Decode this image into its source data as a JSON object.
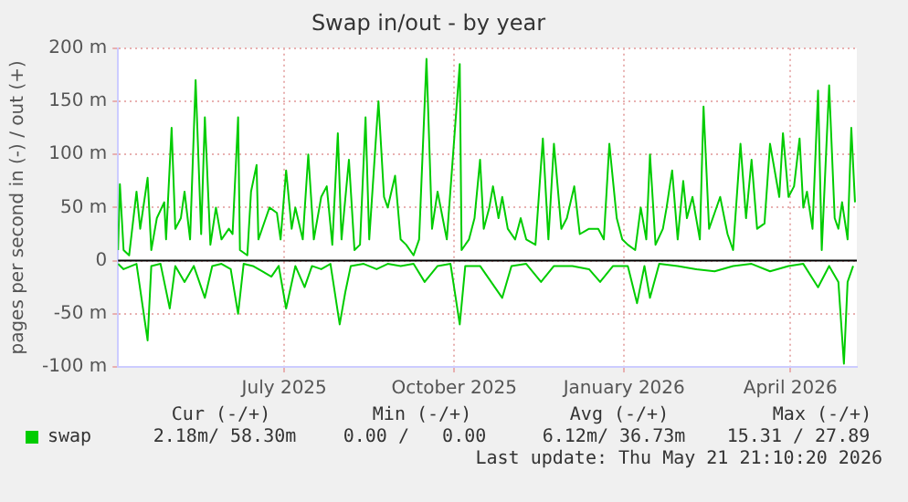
{
  "chart_data": {
    "type": "line",
    "title": "Swap in/out - by year",
    "ylabel": "pages per second in (-) / out (+)",
    "xlim": [
      "2025-04-17",
      "2026-05-22"
    ],
    "xticks": [
      {
        "value": "2025-07-16",
        "label": "July 2025"
      },
      {
        "value": "2025-10-16",
        "label": "October 2025"
      },
      {
        "value": "2026-01-16",
        "label": "January 2026"
      },
      {
        "value": "2026-04-16",
        "label": "April 2026"
      }
    ],
    "ylim": [
      -100,
      200
    ],
    "yticks": [
      {
        "value": -100,
        "label": "-100 m"
      },
      {
        "value": -50,
        "label": "-50 m"
      },
      0,
      {
        "value": 50,
        "label": "50 m"
      },
      {
        "value": 100,
        "label": "100 m"
      },
      {
        "value": 150,
        "label": "150 m"
      },
      {
        "value": 200,
        "label": "200 m"
      }
    ],
    "grid": true,
    "legend": "bottom",
    "marker": "none",
    "ref_lines": [
      {
        "axis": "y",
        "value": 0,
        "color": "#000000"
      }
    ],
    "annotations": [
      "Cur (-/+)",
      "Min (-/+)",
      "Avg (-/+)",
      "Max (-/+)",
      "2.18m/ 58.30m",
      "0.00 /   0.00",
      "6.12m/ 36.73m",
      "15.31 / 27.89",
      "Last update: Thu May 21 21:10:20 2026"
    ],
    "series": [
      {
        "name": "swap",
        "color": "#00cc00",
        "x": [
          "2025-04-17",
          "2025-04-18",
          "2025-04-20",
          "2025-04-23",
          "2025-04-27",
          "2025-04-29",
          "2025-05-03",
          "2025-05-05",
          "2025-05-08",
          "2025-05-12",
          "2025-05-13",
          "2025-05-16",
          "2025-05-18",
          "2025-05-21",
          "2025-05-23",
          "2025-05-26",
          "2025-05-29",
          "2025-06-01",
          "2025-06-03",
          "2025-06-06",
          "2025-06-09",
          "2025-06-12",
          "2025-06-16",
          "2025-06-18",
          "2025-06-21",
          "2025-06-22",
          "2025-06-26",
          "2025-06-28",
          "2025-07-01",
          "2025-07-02",
          "2025-07-06",
          "2025-07-08",
          "2025-07-12",
          "2025-07-14",
          "2025-07-17",
          "2025-07-20",
          "2025-07-22",
          "2025-07-26",
          "2025-07-29",
          "2025-08-01",
          "2025-08-05",
          "2025-08-08",
          "2025-08-11",
          "2025-08-14",
          "2025-08-16",
          "2025-08-20",
          "2025-08-23",
          "2025-08-26",
          "2025-08-29",
          "2025-08-31",
          "2025-09-04",
          "2025-09-05",
          "2025-09-08",
          "2025-09-10",
          "2025-09-14",
          "2025-09-17",
          "2025-09-20",
          "2025-09-24",
          "2025-09-27",
          "2025-10-01",
          "2025-10-04",
          "2025-10-07",
          "2025-10-12",
          "2025-10-19",
          "2025-10-20",
          "2025-10-24",
          "2025-10-27",
          "2025-10-30",
          "2025-11-01",
          "2025-11-04",
          "2025-11-06",
          "2025-11-09",
          "2025-11-11",
          "2025-11-14",
          "2025-11-18",
          "2025-11-21",
          "2025-11-24",
          "2025-11-29",
          "2025-12-03",
          "2025-12-06",
          "2025-12-09",
          "2025-12-13",
          "2025-12-16",
          "2025-12-20",
          "2025-12-23",
          "2025-12-28",
          "2026-01-02",
          "2026-01-05",
          "2026-01-08",
          "2026-01-12",
          "2026-01-15",
          "2026-01-18",
          "2026-01-22",
          "2026-01-25",
          "2026-01-28",
          "2026-01-30",
          "2026-02-02",
          "2026-02-06",
          "2026-02-08",
          "2026-02-11",
          "2026-02-14",
          "2026-02-17",
          "2026-02-19",
          "2026-02-22",
          "2026-02-26",
          "2026-02-28",
          "2026-03-03",
          "2026-03-06",
          "2026-03-09",
          "2026-03-13",
          "2026-03-16",
          "2026-03-20",
          "2026-03-23",
          "2026-03-26",
          "2026-03-29",
          "2026-04-02",
          "2026-04-05",
          "2026-04-08",
          "2026-04-10",
          "2026-04-12",
          "2026-04-15",
          "2026-04-18",
          "2026-04-21",
          "2026-04-23",
          "2026-04-25",
          "2026-04-28",
          "2026-05-01",
          "2026-05-03",
          "2026-05-07",
          "2026-05-10",
          "2026-05-12",
          "2026-05-14",
          "2026-05-17",
          "2026-05-19",
          "2026-05-21"
        ],
        "values": [
          10,
          72,
          10,
          5,
          65,
          30,
          78,
          10,
          40,
          55,
          20,
          125,
          30,
          40,
          65,
          20,
          170,
          25,
          135,
          15,
          50,
          20,
          30,
          25,
          135,
          10,
          5,
          65,
          90,
          20,
          40,
          50,
          45,
          20,
          85,
          30,
          50,
          20,
          100,
          20,
          60,
          70,
          15,
          120,
          20,
          95,
          10,
          15,
          135,
          20,
          125,
          150,
          60,
          50,
          80,
          20,
          15,
          5,
          20,
          190,
          30,
          65,
          20,
          185,
          10,
          20,
          40,
          95,
          30,
          50,
          70,
          40,
          60,
          30,
          20,
          40,
          20,
          15,
          115,
          20,
          110,
          30,
          40,
          70,
          25,
          30,
          30,
          20,
          110,
          40,
          20,
          15,
          10,
          50,
          20,
          100,
          15,
          30,
          50,
          85,
          20,
          75,
          40,
          60,
          20,
          145,
          30,
          45,
          60,
          25,
          10,
          110,
          40,
          95,
          30,
          35,
          110,
          80,
          60,
          120,
          60,
          70,
          115,
          50,
          65,
          30,
          160,
          10,
          165,
          40,
          30,
          55,
          20,
          125,
          55
        ]
      },
      {
        "color": "#00cc00",
        "x": [
          "2025-04-17",
          "2025-04-20",
          "2025-04-27",
          "2025-05-03",
          "2025-05-05",
          "2025-05-10",
          "2025-05-15",
          "2025-05-18",
          "2025-05-23",
          "2025-05-28",
          "2025-06-03",
          "2025-06-07",
          "2025-06-12",
          "2025-06-17",
          "2025-06-21",
          "2025-06-24",
          "2025-06-29",
          "2025-07-04",
          "2025-07-09",
          "2025-07-13",
          "2025-07-17",
          "2025-07-22",
          "2025-07-27",
          "2025-07-31",
          "2025-08-05",
          "2025-08-10",
          "2025-08-15",
          "2025-08-18",
          "2025-08-21",
          "2025-08-28",
          "2025-09-04",
          "2025-09-10",
          "2025-09-17",
          "2025-09-24",
          "2025-09-30",
          "2025-10-07",
          "2025-10-14",
          "2025-10-19",
          "2025-10-22",
          "2025-10-30",
          "2025-11-11",
          "2025-11-16",
          "2025-11-24",
          "2025-12-02",
          "2025-12-09",
          "2025-12-19",
          "2025-12-28",
          "2026-01-03",
          "2026-01-10",
          "2026-01-18",
          "2026-01-23",
          "2026-01-27",
          "2026-01-30",
          "2026-02-04",
          "2026-02-14",
          "2026-02-24",
          "2026-03-06",
          "2026-03-16",
          "2026-03-26",
          "2026-04-05",
          "2026-04-15",
          "2026-04-23",
          "2026-05-01",
          "2026-05-07",
          "2026-05-12",
          "2026-05-15",
          "2026-05-17",
          "2026-05-20"
        ],
        "values": [
          -3,
          -8,
          -3,
          -75,
          -5,
          -3,
          -45,
          -5,
          -20,
          -5,
          -35,
          -5,
          -3,
          -8,
          -50,
          -3,
          -5,
          -10,
          -15,
          -5,
          -45,
          -5,
          -25,
          -5,
          -8,
          -3,
          -60,
          -30,
          -5,
          -3,
          -8,
          -3,
          -5,
          -3,
          -20,
          -5,
          -3,
          -60,
          -5,
          -5,
          -35,
          -5,
          -3,
          -20,
          -5,
          -5,
          -8,
          -20,
          -5,
          -5,
          -40,
          -5,
          -35,
          -3,
          -5,
          -8,
          -10,
          -5,
          -3,
          -10,
          -5,
          -3,
          -25,
          -5,
          -20,
          -97,
          -20,
          -5
        ]
      }
    ]
  }
}
